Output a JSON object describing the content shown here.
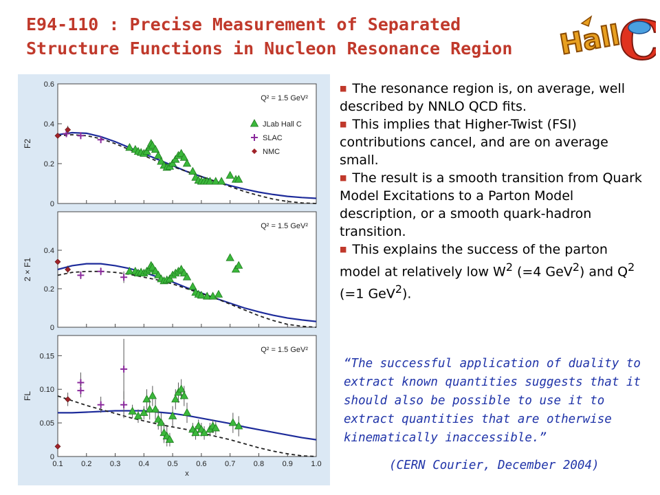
{
  "slide": {
    "title_line1": "E94-110 : Precise Measurement of Separated",
    "title_line2": "Structure Functions in Nucleon Resonance Region",
    "logo_text": "Hall C",
    "bullets": [
      {
        "text": "The resonance region is, on average, well described by NNLO QCD fits."
      },
      {
        "text": "This implies that Higher-Twist (FSI) contributions cancel, and are on average small."
      },
      {
        "text": "The result is a smooth transition from Quark Model Excitations to a Parton Model description, or a smooth quark-hadron transition."
      },
      {
        "text": "This explains the success of the parton model at relatively low W",
        "sup1": "2",
        "mid1": " (=4 GeV",
        "sup2": "2",
        "mid2": ") and Q",
        "sup3": "2",
        "mid3": " (=1 GeV",
        "sup4": "2",
        "end": ")."
      }
    ],
    "quote": "“The successful application of duality to extract known quantities suggests that it should also be possible  to use it to extract quantities that are otherwise kinematically inaccessible.”",
    "quote_source": "(CERN Courier, December 2004)",
    "colors": {
      "title": "#c0392b",
      "quote": "#1f33a8",
      "fit_solid": "#1d2b9a",
      "jlab": "#3bb83b",
      "slac": "#8a2a9c",
      "nmc": "#a0232a"
    }
  },
  "chart_data": [
    {
      "type": "scatter",
      "ylabel": "F2",
      "annotation": "Q² = 1.5 GeV²",
      "ylim": [
        0,
        0.6
      ],
      "yticks": [
        "0",
        "0.2",
        "0.4",
        "0.6"
      ],
      "xlim": [
        0.1,
        1.0
      ],
      "legend": [
        "JLab Hall C",
        "SLAC",
        "NMC"
      ],
      "legend_position": "right",
      "series": [
        {
          "name": "JLab Hall C",
          "marker": "triangle",
          "x": [
            0.35,
            0.37,
            0.38,
            0.39,
            0.4,
            0.41,
            0.42,
            0.425,
            0.43,
            0.44,
            0.45,
            0.46,
            0.47,
            0.48,
            0.49,
            0.5,
            0.51,
            0.52,
            0.53,
            0.54,
            0.55,
            0.57,
            0.58,
            0.59,
            0.6,
            0.61,
            0.62,
            0.63,
            0.65,
            0.67,
            0.7,
            0.72,
            0.73
          ],
          "y": [
            0.28,
            0.27,
            0.26,
            0.255,
            0.25,
            0.26,
            0.28,
            0.3,
            0.29,
            0.27,
            0.24,
            0.21,
            0.19,
            0.18,
            0.185,
            0.2,
            0.22,
            0.24,
            0.25,
            0.23,
            0.2,
            0.16,
            0.13,
            0.115,
            0.11,
            0.11,
            0.11,
            0.11,
            0.11,
            0.11,
            0.14,
            0.12,
            0.12
          ]
        },
        {
          "name": "SLAC",
          "marker": "plus",
          "x": [
            0.13,
            0.18,
            0.25
          ],
          "y": [
            0.35,
            0.34,
            0.32
          ],
          "err": [
            0.015,
            0.015,
            0.015
          ]
        },
        {
          "name": "NMC",
          "marker": "diamond",
          "x": [
            0.1,
            0.135
          ],
          "y": [
            0.34,
            0.37
          ],
          "err": [
            0.01,
            0.02
          ]
        }
      ],
      "curves": [
        {
          "style": "solid",
          "x": [
            0.1,
            0.15,
            0.2,
            0.25,
            0.3,
            0.35,
            0.4,
            0.45,
            0.5,
            0.55,
            0.6,
            0.65,
            0.7,
            0.75,
            0.8,
            0.85,
            0.9,
            0.95,
            1.0
          ],
          "y": [
            0.345,
            0.355,
            0.352,
            0.335,
            0.31,
            0.28,
            0.25,
            0.22,
            0.19,
            0.16,
            0.135,
            0.11,
            0.09,
            0.072,
            0.057,
            0.045,
            0.036,
            0.03,
            0.026
          ]
        },
        {
          "style": "dashed",
          "x": [
            0.1,
            0.15,
            0.2,
            0.25,
            0.3,
            0.35,
            0.4,
            0.45,
            0.5,
            0.55,
            0.6,
            0.65,
            0.7,
            0.75,
            0.8,
            0.85,
            0.9,
            0.95,
            1.0
          ],
          "y": [
            0.34,
            0.345,
            0.34,
            0.325,
            0.3,
            0.27,
            0.24,
            0.21,
            0.185,
            0.16,
            0.135,
            0.11,
            0.085,
            0.06,
            0.04,
            0.022,
            0.01,
            0.003,
            0.0
          ]
        }
      ]
    },
    {
      "type": "scatter",
      "ylabel": "2 × F1",
      "annotation": "Q² = 1.5 GeV²",
      "ylim": [
        0,
        0.6
      ],
      "yticks": [
        "0",
        "0.2",
        "0.4"
      ],
      "xlim": [
        0.1,
        1.0
      ],
      "series": [
        {
          "name": "JLab Hall C",
          "marker": "triangle",
          "x": [
            0.35,
            0.37,
            0.38,
            0.39,
            0.4,
            0.41,
            0.42,
            0.425,
            0.43,
            0.44,
            0.45,
            0.46,
            0.47,
            0.48,
            0.49,
            0.5,
            0.51,
            0.52,
            0.53,
            0.54,
            0.55,
            0.57,
            0.58,
            0.59,
            0.6,
            0.62,
            0.64,
            0.66,
            0.7,
            0.72,
            0.73
          ],
          "y": [
            0.29,
            0.29,
            0.28,
            0.285,
            0.28,
            0.29,
            0.3,
            0.32,
            0.31,
            0.29,
            0.27,
            0.25,
            0.24,
            0.245,
            0.25,
            0.27,
            0.28,
            0.29,
            0.3,
            0.28,
            0.26,
            0.21,
            0.18,
            0.17,
            0.165,
            0.16,
            0.16,
            0.17,
            0.36,
            0.3,
            0.32
          ]
        },
        {
          "name": "SLAC",
          "marker": "plus",
          "x": [
            0.18,
            0.25,
            0.33
          ],
          "y": [
            0.27,
            0.29,
            0.26
          ],
          "err": [
            0.02,
            0.02,
            0.03
          ]
        },
        {
          "name": "NMC",
          "marker": "diamond",
          "x": [
            0.1,
            0.135
          ],
          "y": [
            0.34,
            0.3
          ],
          "err": [
            0.02,
            0.02
          ]
        }
      ],
      "curves": [
        {
          "style": "solid",
          "x": [
            0.1,
            0.15,
            0.2,
            0.25,
            0.3,
            0.35,
            0.4,
            0.45,
            0.5,
            0.55,
            0.6,
            0.65,
            0.7,
            0.75,
            0.8,
            0.85,
            0.9,
            0.95,
            1.0
          ],
          "y": [
            0.3,
            0.32,
            0.33,
            0.33,
            0.32,
            0.305,
            0.285,
            0.26,
            0.235,
            0.205,
            0.178,
            0.15,
            0.125,
            0.1,
            0.08,
            0.062,
            0.048,
            0.038,
            0.03
          ]
        },
        {
          "style": "dashed",
          "x": [
            0.1,
            0.15,
            0.2,
            0.25,
            0.3,
            0.35,
            0.4,
            0.45,
            0.5,
            0.55,
            0.6,
            0.65,
            0.7,
            0.75,
            0.8,
            0.85,
            0.9,
            0.95,
            1.0
          ],
          "y": [
            0.27,
            0.285,
            0.29,
            0.29,
            0.285,
            0.275,
            0.26,
            0.245,
            0.225,
            0.2,
            0.175,
            0.15,
            0.12,
            0.09,
            0.06,
            0.035,
            0.015,
            0.005,
            0.0
          ]
        }
      ]
    },
    {
      "type": "scatter",
      "ylabel": "FL",
      "annotation": "Q² = 1.5 GeV²",
      "ylim": [
        0,
        0.18
      ],
      "yticks": [
        "0",
        "0.05",
        "0.10",
        "0.15"
      ],
      "xlim": [
        0.1,
        1.0
      ],
      "xticks": [
        "0.1",
        "0.2",
        "0.3",
        "0.4",
        "0.5",
        "0.6",
        "0.7",
        "0.8",
        "0.9",
        "1.0"
      ],
      "xlabel": "x",
      "series": [
        {
          "name": "JLab Hall C",
          "marker": "triangle",
          "x": [
            0.36,
            0.38,
            0.4,
            0.41,
            0.42,
            0.43,
            0.44,
            0.45,
            0.46,
            0.47,
            0.48,
            0.49,
            0.5,
            0.51,
            0.52,
            0.53,
            0.54,
            0.55,
            0.57,
            0.58,
            0.59,
            0.6,
            0.61,
            0.63,
            0.64,
            0.65,
            0.71,
            0.73
          ],
          "y": [
            0.067,
            0.06,
            0.065,
            0.085,
            0.07,
            0.09,
            0.07,
            0.055,
            0.05,
            0.035,
            0.03,
            0.025,
            0.06,
            0.085,
            0.095,
            0.1,
            0.09,
            0.065,
            0.04,
            0.035,
            0.045,
            0.04,
            0.035,
            0.04,
            0.045,
            0.042,
            0.05,
            0.045
          ],
          "err": [
            0.01,
            0.01,
            0.01,
            0.015,
            0.015,
            0.015,
            0.015,
            0.015,
            0.015,
            0.015,
            0.015,
            0.01,
            0.015,
            0.015,
            0.015,
            0.015,
            0.015,
            0.015,
            0.01,
            0.01,
            0.01,
            0.01,
            0.01,
            0.01,
            0.01,
            0.01,
            0.015,
            0.015
          ]
        },
        {
          "name": "SLAC",
          "marker": "plus",
          "x": [
            0.18,
            0.18,
            0.25,
            0.33,
            0.33
          ],
          "y": [
            0.11,
            0.098,
            0.077,
            0.13,
            0.077
          ],
          "err": [
            0.015,
            0.01,
            0.012,
            0.045,
            0.02
          ]
        },
        {
          "name": "NMC",
          "marker": "diamond",
          "x": [
            0.1,
            0.135
          ],
          "y": [
            0.015,
            0.085
          ],
          "err": [
            0.005,
            0.01
          ]
        }
      ],
      "curves": [
        {
          "style": "solid",
          "x": [
            0.1,
            0.15,
            0.2,
            0.25,
            0.3,
            0.35,
            0.4,
            0.45,
            0.5,
            0.55,
            0.6,
            0.65,
            0.7,
            0.75,
            0.8,
            0.85,
            0.9,
            0.95,
            1.0
          ],
          "y": [
            0.065,
            0.065,
            0.066,
            0.067,
            0.068,
            0.068,
            0.068,
            0.066,
            0.064,
            0.061,
            0.057,
            0.053,
            0.049,
            0.044,
            0.04,
            0.036,
            0.032,
            0.028,
            0.025
          ]
        },
        {
          "style": "dashed",
          "x": [
            0.1,
            0.15,
            0.2,
            0.25,
            0.3,
            0.35,
            0.4,
            0.45,
            0.5,
            0.55,
            0.6,
            0.65,
            0.7,
            0.75,
            0.8,
            0.85,
            0.9,
            0.95,
            1.0
          ],
          "y": [
            0.09,
            0.083,
            0.076,
            0.07,
            0.064,
            0.058,
            0.053,
            0.048,
            0.044,
            0.04,
            0.035,
            0.03,
            0.025,
            0.019,
            0.013,
            0.008,
            0.004,
            0.001,
            0.0
          ]
        }
      ]
    }
  ]
}
